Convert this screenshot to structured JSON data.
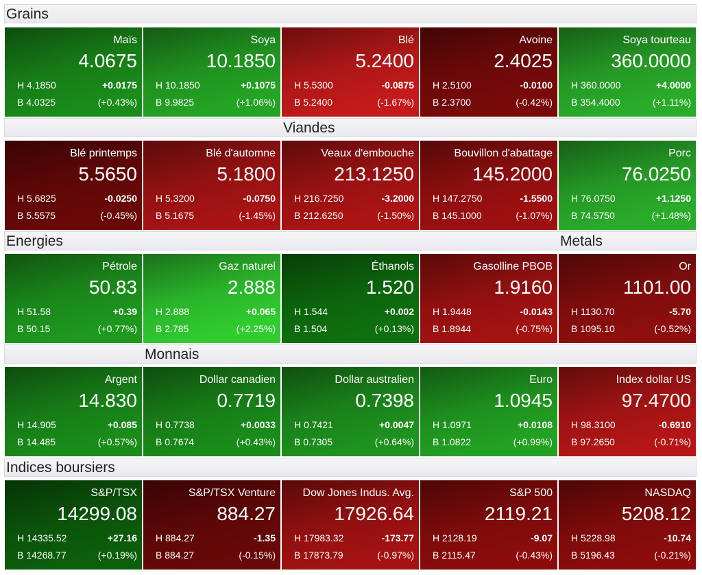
{
  "sections": [
    {
      "headers": [
        "Grains"
      ],
      "tiles": [
        {
          "name": "Maïs",
          "last": "4.0675",
          "high": "H 4.1850",
          "low": "B 4.0325",
          "change": "+0.0175",
          "change_pct": "(+0.43%)",
          "color": "#1a8c1a"
        },
        {
          "name": "Soya",
          "last": "10.1850",
          "high": "H 10.1850",
          "low": "B 9.9825",
          "change": "+0.1075",
          "change_pct": "(+1.06%)",
          "color": "#24a424"
        },
        {
          "name": "Blé",
          "last": "5.2400",
          "high": "H 5.5300",
          "low": "B 5.2400",
          "change": "-0.0875",
          "change_pct": "(-1.67%)",
          "color": "#c41a1a"
        },
        {
          "name": "Avoine",
          "last": "2.4025",
          "high": "H 2.5100",
          "low": "B 2.3700",
          "change": "-0.0100",
          "change_pct": "(-0.42%)",
          "color": "#7a0a0a"
        },
        {
          "name": "Soya tourteau",
          "last": "360.0000",
          "high": "H 360.0000",
          "low": "B 354.4000",
          "change": "+4.0000",
          "change_pct": "(+1.11%)",
          "color": "#2aac2a"
        }
      ]
    },
    {
      "headers": [
        "Viandes"
      ],
      "tiles": [
        {
          "name": "Blé printemps",
          "last": "5.5650",
          "high": "H 5.6825",
          "low": "B 5.5575",
          "change": "-0.0250",
          "change_pct": "(-0.45%)",
          "color": "#6a0808"
        },
        {
          "name": "Blé d'automne",
          "last": "5.1800",
          "high": "H 5.3200",
          "low": "B 5.1675",
          "change": "-0.0750",
          "change_pct": "(-1.45%)",
          "color": "#a81414"
        },
        {
          "name": "Veaux d'embouche",
          "last": "213.1250",
          "high": "H 216.7250",
          "low": "B 212.6250",
          "change": "-3.2000",
          "change_pct": "(-1.50%)",
          "color": "#ac1414"
        },
        {
          "name": "Bouvillon d'abattage",
          "last": "145.2000",
          "high": "H 147.2750",
          "low": "B 145.1000",
          "change": "-1.5500",
          "change_pct": "(-1.07%)",
          "color": "#9e1010"
        },
        {
          "name": "Porc",
          "last": "76.0250",
          "high": "H 76.0750",
          "low": "B 74.5750",
          "change": "+1.1250",
          "change_pct": "(+1.48%)",
          "color": "#2aac2a"
        }
      ]
    },
    {
      "headers": [
        "Energies",
        "Metals"
      ],
      "tiles": [
        {
          "name": "Pétrole",
          "last": "50.83",
          "high": "H 51.58",
          "low": "B 50.15",
          "change": "+0.39",
          "change_pct": "(+0.77%)",
          "color": "#1e981e"
        },
        {
          "name": "Gaz naturel",
          "last": "2.888",
          "high": "H 2.888",
          "low": "B 2.785",
          "change": "+0.065",
          "change_pct": "(+2.25%)",
          "color": "#30cc30"
        },
        {
          "name": "Éthanols",
          "last": "1.520",
          "high": "H 1.544",
          "low": "B 1.504",
          "change": "+0.002",
          "change_pct": "(+0.13%)",
          "color": "#0e700e"
        },
        {
          "name": "Gasolline PBOB",
          "last": "1.9160",
          "high": "H 1.9448",
          "low": "B 1.8944",
          "change": "-0.0143",
          "change_pct": "(-0.75%)",
          "color": "#a41212"
        },
        {
          "name": "Or",
          "last": "1101.00",
          "high": "H 1130.70",
          "low": "B 1095.10",
          "change": "-5.70",
          "change_pct": "(-0.52%)",
          "color": "#8e0e0e"
        }
      ]
    },
    {
      "headers": [
        "Monnais"
      ],
      "tiles": [
        {
          "name": "Argent",
          "last": "14.830",
          "high": "H 14.905",
          "low": "B 14.485",
          "change": "+0.085",
          "change_pct": "(+0.57%)",
          "color": "#1a8c1a"
        },
        {
          "name": "Dollar canadien",
          "last": "0.7719",
          "high": "H 0.7738",
          "low": "B 0.7674",
          "change": "+0.0033",
          "change_pct": "(+0.43%)",
          "color": "#1a8c1a"
        },
        {
          "name": "Dollar australien",
          "last": "0.7398",
          "high": "H 0.7421",
          "low": "B 0.7305",
          "change": "+0.0047",
          "change_pct": "(+0.64%)",
          "color": "#1e921e"
        },
        {
          "name": "Euro",
          "last": "1.0945",
          "high": "H 1.0971",
          "low": "B 1.0822",
          "change": "+0.0108",
          "change_pct": "(+0.99%)",
          "color": "#22a222"
        },
        {
          "name": "Index dollar US",
          "last": "97.4700",
          "high": "H 98.3100",
          "low": "B 97.2650",
          "change": "-0.6910",
          "change_pct": "(-0.71%)",
          "color": "#b41616"
        }
      ]
    },
    {
      "headers": [
        "Indices boursiers"
      ],
      "tiles": [
        {
          "name": "S&P/TSX",
          "last": "14299.08",
          "high": "H 14335.52",
          "low": "B 14268.77",
          "change": "+27.16",
          "change_pct": "(+0.19%)",
          "color": "#0c5e0c"
        },
        {
          "name": "S&P/TSX Venture",
          "last": "884.27",
          "high": "H 884.27",
          "low": "B 884.27",
          "change": "-1.35",
          "change_pct": "(-0.15%)",
          "color": "#680808"
        },
        {
          "name": "Dow Jones Indus. Avg.",
          "last": "17926.64",
          "high": "H 17983.32",
          "low": "B 17873.79",
          "change": "-173.77",
          "change_pct": "(-0.97%)",
          "color": "#a41212"
        },
        {
          "name": "S&P 500",
          "last": "2119.21",
          "high": "H 2128.19",
          "low": "B 2115.47",
          "change": "-9.07",
          "change_pct": "(-0.43%)",
          "color": "#8c0c0c"
        },
        {
          "name": "NASDAQ",
          "last": "5208.12",
          "high": "H 5228.98",
          "low": "B 5196.43",
          "change": "-10.74",
          "change_pct": "(-0.21%)",
          "color": "#8c0c0c"
        }
      ]
    }
  ]
}
